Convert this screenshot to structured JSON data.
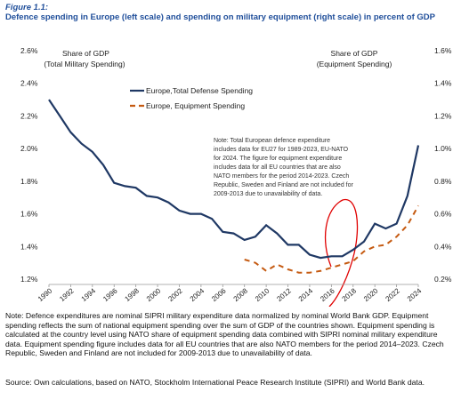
{
  "chart_data": {
    "type": "line",
    "figure_label": "Figure 1.1:",
    "title": "Defence spending in Europe (left scale) and spending on military equipment (right scale) in percent of GDP",
    "y_label": [
      "Share of GDP",
      "(Total Military Spending)"
    ],
    "y2_label": [
      "Share of GDP",
      "(Equipment Spending)"
    ],
    "x": [
      1990,
      1991,
      1992,
      1993,
      1994,
      1995,
      1996,
      1997,
      1998,
      1999,
      2000,
      2001,
      2002,
      2003,
      2004,
      2005,
      2006,
      2007,
      2008,
      2009,
      2010,
      2011,
      2012,
      2013,
      2014,
      2015,
      2016,
      2017,
      2018,
      2019,
      2020,
      2021,
      2022,
      2023,
      2024
    ],
    "xlim": [
      1990,
      2024
    ],
    "xticks": [
      1990,
      1992,
      1994,
      1996,
      1998,
      2000,
      2002,
      2004,
      2006,
      2008,
      2010,
      2012,
      2014,
      2016,
      2018,
      2020,
      2022,
      2024
    ],
    "ylim": [
      1.2,
      2.6
    ],
    "yticks": [
      {
        "value": 1.2,
        "label": "1.2%"
      },
      {
        "value": 1.4,
        "label": "1.4%"
      },
      {
        "value": 1.6,
        "label": "1.6%"
      },
      {
        "value": 1.8,
        "label": "1.8%"
      },
      {
        "value": 2.0,
        "label": "2.0%"
      },
      {
        "value": 2.2,
        "label": "2.2%"
      },
      {
        "value": 2.4,
        "label": "2.4%"
      },
      {
        "value": 2.6,
        "label": "2.6%"
      }
    ],
    "y2lim": [
      0.2,
      1.6
    ],
    "y2ticks": [
      {
        "value": 0.2,
        "label": "0.2%"
      },
      {
        "value": 0.4,
        "label": "0.4%"
      },
      {
        "value": 0.6,
        "label": "0.6%"
      },
      {
        "value": 0.8,
        "label": "0.8%"
      },
      {
        "value": 1.0,
        "label": "1.0%"
      },
      {
        "value": 1.2,
        "label": "1.2%"
      },
      {
        "value": 1.4,
        "label": "1.4%"
      },
      {
        "value": 1.6,
        "label": "1.6%"
      }
    ],
    "series": [
      {
        "name": "Europe,Total Defense Spending",
        "color": "#1f3864",
        "style": "solid",
        "values": [
          2.3,
          2.2,
          2.1,
          2.03,
          1.98,
          1.9,
          1.79,
          1.77,
          1.76,
          1.71,
          1.7,
          1.67,
          1.62,
          1.6,
          1.6,
          1.57,
          1.49,
          1.48,
          1.44,
          1.46,
          1.53,
          1.48,
          1.41,
          1.41,
          1.35,
          1.33,
          1.34,
          1.34,
          1.38,
          1.43,
          1.54,
          1.51,
          1.54,
          1.71,
          2.02
        ]
      },
      {
        "name": "Europe, Equipment Spending",
        "color": "#c55a11",
        "style": "dashed",
        "axis": "y2",
        "values": [
          null,
          null,
          null,
          null,
          null,
          null,
          null,
          null,
          null,
          null,
          null,
          null,
          null,
          null,
          null,
          null,
          null,
          null,
          0.32,
          0.3,
          0.25,
          0.29,
          0.26,
          0.24,
          0.24,
          0.25,
          0.27,
          0.29,
          0.31,
          0.37,
          0.4,
          0.41,
          0.46,
          0.53,
          0.65
        ]
      }
    ],
    "annotation": [
      "Note: Total European defence expenditure",
      "includes data for EU27 for 1989-2023, EU-NATO",
      "for 2024. The figure for equipment expenditure",
      "includes data for all EU countries that are also",
      "NATO members for the period 2014-2023. Czech",
      "Republic, Sweden and Finland are not included for",
      "2009-2013 due to unavailability of data."
    ],
    "note": "Note: Defence expenditures are nominal SIPRI military expenditure data normalized by nominal World Bank GDP. Equipment spending reflects the sum of national equipment spending over the sum of GDP of the countries shown. Equipment spending is calculated at the country level using NATO share of equipment spending data combined with SIPRI nominal military expenditure data. Equipment spending figure includes data for all EU countries that are also NATO members for the period 2014–2023. Czech Republic, Sweden and Finland are not included for 2009-2013 due to unavailability of data.",
    "source": "Source: Own calculations, based on NATO, Stockholm International Peace Research Institute (SIPRI) and World Bank data."
  }
}
